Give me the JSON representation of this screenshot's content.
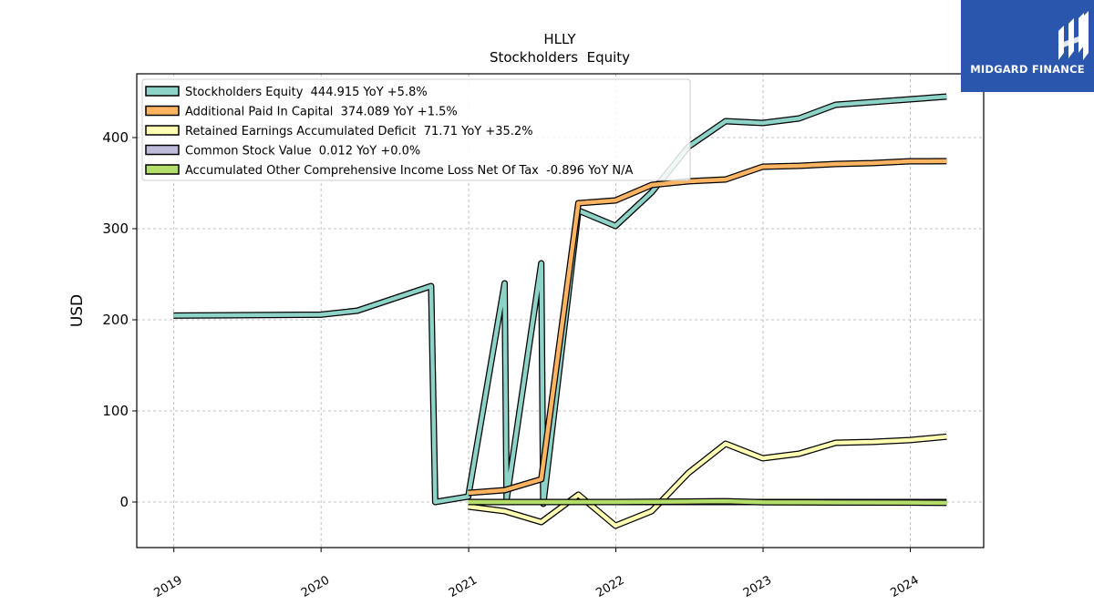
{
  "brand": {
    "name": "MIDGARD FINANCE",
    "color": "#2a56ad"
  },
  "chart_data": {
    "type": "line",
    "title": "HLLY",
    "subtitle": "Stockholders  Equity",
    "ylabel": "USD",
    "xlabel": "",
    "xlim": [
      "2018-10-01",
      "2024-07-01"
    ],
    "ylim": [
      -50,
      470
    ],
    "yticks": [
      0,
      100,
      200,
      300,
      400
    ],
    "xticks": [
      "2019",
      "2020",
      "2021",
      "2022",
      "2023",
      "2024"
    ],
    "grid": true,
    "legend_position": "top-left",
    "series": [
      {
        "name": "Stockholders Equity  444.915 YoY +5.8%",
        "color": "#8dd3c7",
        "points": [
          [
            "2018-12-31",
            204.6
          ],
          [
            "2019-12-31",
            205.6
          ],
          [
            "2020-03-31",
            210
          ],
          [
            "2020-09-30",
            237
          ],
          [
            "2020-10-10",
            0
          ],
          [
            "2020-12-31",
            6
          ],
          [
            "2021-03-31",
            240
          ],
          [
            "2021-04-05",
            3
          ],
          [
            "2021-06-30",
            262
          ],
          [
            "2021-07-05",
            -2
          ],
          [
            "2021-09-30",
            320
          ],
          [
            "2021-12-31",
            303
          ],
          [
            "2022-03-31",
            340
          ],
          [
            "2022-06-30",
            390
          ],
          [
            "2022-09-30",
            418
          ],
          [
            "2022-12-31",
            416
          ],
          [
            "2023-03-31",
            421
          ],
          [
            "2023-06-30",
            436
          ],
          [
            "2023-09-30",
            439
          ],
          [
            "2023-12-31",
            442
          ],
          [
            "2024-03-31",
            445
          ]
        ]
      },
      {
        "name": "Additional Paid In Capital  374.089 YoY +1.5%",
        "color": "#fdb462",
        "points": [
          [
            "2020-12-31",
            10
          ],
          [
            "2021-03-31",
            13
          ],
          [
            "2021-06-30",
            25
          ],
          [
            "2021-09-30",
            328
          ],
          [
            "2021-12-31",
            331
          ],
          [
            "2022-03-31",
            348
          ],
          [
            "2022-06-30",
            352
          ],
          [
            "2022-09-30",
            354
          ],
          [
            "2022-12-31",
            368
          ],
          [
            "2023-03-31",
            369
          ],
          [
            "2023-06-30",
            371
          ],
          [
            "2023-09-30",
            372
          ],
          [
            "2023-12-31",
            374
          ],
          [
            "2024-03-31",
            374.1
          ]
        ]
      },
      {
        "name": "Retained Earnings Accumulated Deficit  71.71 YoY +35.2%",
        "color": "#ffffb3",
        "points": [
          [
            "2020-12-31",
            -5
          ],
          [
            "2021-03-31",
            -10
          ],
          [
            "2021-06-30",
            -22
          ],
          [
            "2021-09-30",
            8
          ],
          [
            "2021-12-31",
            -26
          ],
          [
            "2022-03-31",
            -10
          ],
          [
            "2022-06-30",
            32
          ],
          [
            "2022-09-30",
            64
          ],
          [
            "2022-12-31",
            48
          ],
          [
            "2023-03-31",
            53
          ],
          [
            "2023-06-30",
            65
          ],
          [
            "2023-09-30",
            66
          ],
          [
            "2023-12-31",
            68
          ],
          [
            "2024-03-31",
            71.7
          ]
        ]
      },
      {
        "name": "Common Stock Value  0.012 YoY +0.0%",
        "color": "#bebada",
        "points": [
          [
            "2020-12-31",
            0.012
          ],
          [
            "2021-12-31",
            0.012
          ],
          [
            "2022-12-31",
            0.012
          ],
          [
            "2023-12-31",
            0.012
          ],
          [
            "2024-03-31",
            0.012
          ]
        ]
      },
      {
        "name": "Accumulated Other Comprehensive Income Loss Net Of Tax  -0.896 YoY N/A",
        "color": "#b3de69",
        "points": [
          [
            "2020-12-31",
            0
          ],
          [
            "2021-06-30",
            0
          ],
          [
            "2021-12-31",
            0
          ],
          [
            "2022-06-30",
            0.5
          ],
          [
            "2022-09-30",
            0.9
          ],
          [
            "2022-12-31",
            -0.2
          ],
          [
            "2023-06-30",
            -0.5
          ],
          [
            "2023-12-31",
            -0.6
          ],
          [
            "2024-03-31",
            -0.896
          ]
        ]
      }
    ]
  }
}
